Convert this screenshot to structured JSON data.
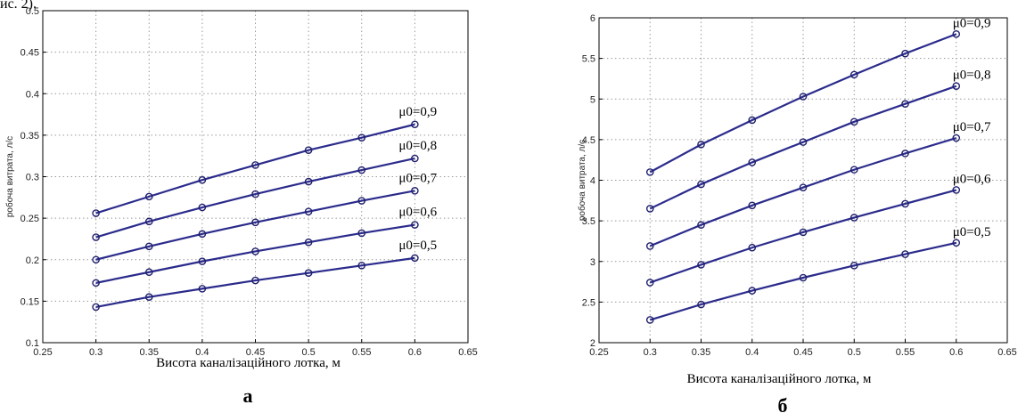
{
  "top_fragment": "ис. 2).",
  "chart_data": [
    {
      "type": "line",
      "panel_label": "а",
      "xlabel": "Висота каналізаційного лотка, м",
      "ylabel": "робоча витрата, л/с",
      "xlim": [
        0.25,
        0.65
      ],
      "ylim": [
        0.1,
        0.5
      ],
      "xticks": [
        "0.25",
        "0.3",
        "0.35",
        "0.4",
        "0.45",
        "0.5",
        "0.55",
        "0.6",
        "0.65"
      ],
      "yticks": [
        "0.1",
        "0.15",
        "0.2",
        "0.25",
        "0.3",
        "0.35",
        "0.4",
        "0.45",
        "0.5"
      ],
      "grid": true,
      "x": [
        0.3,
        0.35,
        0.4,
        0.45,
        0.5,
        0.55,
        0.6
      ],
      "series": [
        {
          "name": "μ0=0,9",
          "values": [
            0.256,
            0.276,
            0.296,
            0.314,
            0.332,
            0.347,
            0.363
          ]
        },
        {
          "name": "μ0=0,8",
          "values": [
            0.227,
            0.246,
            0.263,
            0.279,
            0.294,
            0.308,
            0.322
          ]
        },
        {
          "name": "μ0=0,7",
          "values": [
            0.2,
            0.216,
            0.231,
            0.245,
            0.258,
            0.271,
            0.283
          ]
        },
        {
          "name": "μ0=0,6",
          "values": [
            0.172,
            0.185,
            0.198,
            0.21,
            0.221,
            0.232,
            0.242
          ]
        },
        {
          "name": "μ0=0,5",
          "values": [
            0.143,
            0.155,
            0.165,
            0.175,
            0.184,
            0.193,
            0.202
          ]
        }
      ]
    },
    {
      "type": "line",
      "panel_label": "б",
      "xlabel": "Висота каналізаційного лотка, м",
      "ylabel": "робоча витрата, л/с",
      "xlim": [
        0.25,
        0.65
      ],
      "ylim": [
        2,
        6
      ],
      "xticks": [
        "0.25",
        "0.3",
        "0.35",
        "0.4",
        "0.45",
        "0.5",
        "0.55",
        "0.6",
        "0.65"
      ],
      "yticks": [
        "2",
        "2.5",
        "3",
        "3.5",
        "4",
        "4.5",
        "5",
        "5.5",
        "6"
      ],
      "grid": true,
      "x": [
        0.3,
        0.35,
        0.4,
        0.45,
        0.5,
        0.55,
        0.6
      ],
      "series": [
        {
          "name": "μ0=0,9",
          "values": [
            4.1,
            4.44,
            4.74,
            5.03,
            5.3,
            5.56,
            5.8
          ]
        },
        {
          "name": "μ0=0,8",
          "values": [
            3.65,
            3.95,
            4.22,
            4.47,
            4.72,
            4.94,
            5.16
          ]
        },
        {
          "name": "μ0=0,7",
          "values": [
            3.19,
            3.45,
            3.69,
            3.91,
            4.13,
            4.33,
            4.52
          ]
        },
        {
          "name": "μ0=0,6",
          "values": [
            2.74,
            2.96,
            3.17,
            3.36,
            3.54,
            3.71,
            3.88
          ]
        },
        {
          "name": "μ0=0,5",
          "values": [
            2.28,
            2.47,
            2.64,
            2.8,
            2.95,
            3.09,
            3.23
          ]
        }
      ]
    }
  ],
  "colors": {
    "line": "#2b2b8c",
    "marker": "#20206e",
    "grid": "#9a9a9a",
    "axis": "#000000"
  }
}
